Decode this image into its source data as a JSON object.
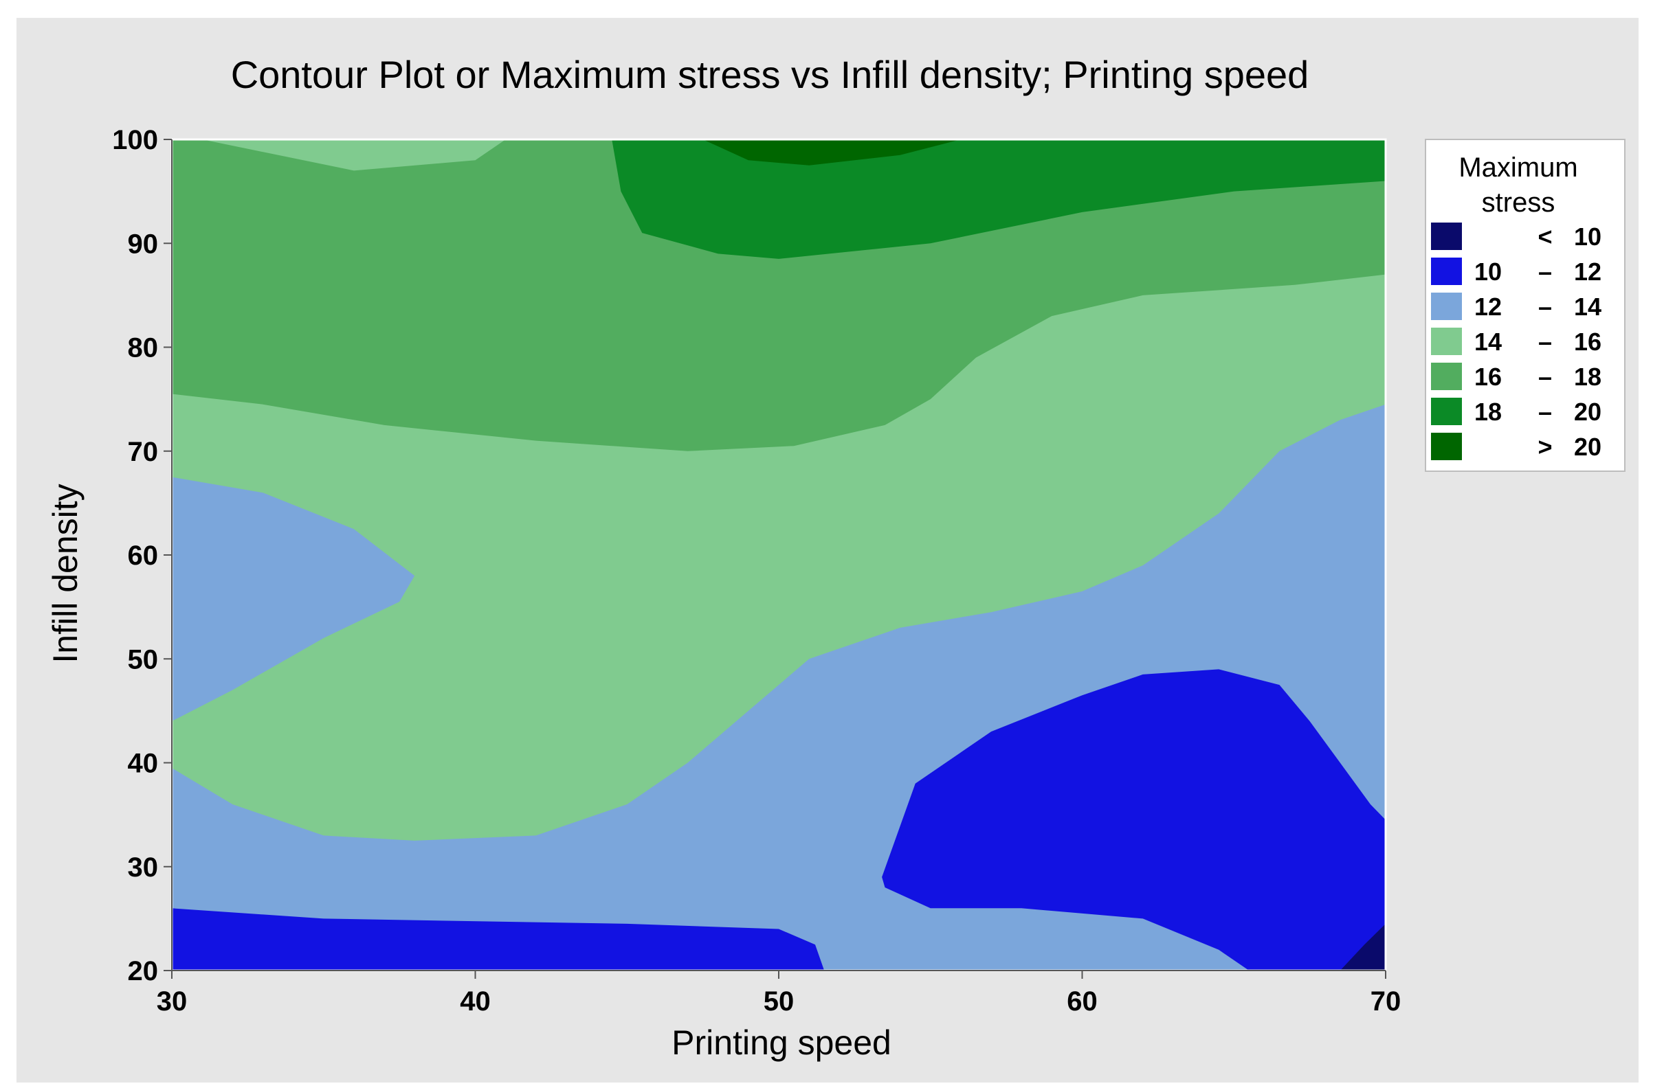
{
  "chart_data": {
    "type": "contour",
    "title": "Contour Plot or Maximum stress vs Infill density; Printing speed",
    "xlabel": "Printing speed",
    "ylabel": "Infill density",
    "xlim": [
      30,
      70
    ],
    "ylim": [
      20,
      100
    ],
    "xticks": [
      "30",
      "40",
      "50",
      "60",
      "70"
    ],
    "yticks": [
      "20",
      "30",
      "40",
      "50",
      "60",
      "70",
      "80",
      "90",
      "100"
    ],
    "legend": {
      "title_line1": "Maximum",
      "title_line2": "stress",
      "placement": "right",
      "entries": [
        {
          "low": "",
          "sep": "<",
          "high": "10",
          "color": "#0a0a6b"
        },
        {
          "low": "10",
          "sep": "–",
          "high": "12",
          "color": "#1212e2"
        },
        {
          "low": "12",
          "sep": "–",
          "high": "14",
          "color": "#7ba6db"
        },
        {
          "low": "14",
          "sep": "–",
          "high": "16",
          "color": "#80cb8f"
        },
        {
          "low": "16",
          "sep": "–",
          "high": "18",
          "color": "#52ad5f"
        },
        {
          "low": "18",
          "sep": "–",
          "high": "20",
          "color": "#0b8a26"
        },
        {
          "low": "",
          "sep": ">",
          "high": "20",
          "color": "#006600"
        }
      ]
    },
    "regions": [
      {
        "level": "12 – 14",
        "color": "#7ba6db",
        "points": [
          [
            30,
            20
          ],
          [
            70,
            20
          ],
          [
            70,
            100
          ],
          [
            30,
            100
          ]
        ]
      },
      {
        "level": "14 – 16",
        "color": "#80cb8f",
        "points": [
          [
            30,
            100
          ],
          [
            70,
            100
          ],
          [
            70,
            74.5
          ],
          [
            68.5,
            73
          ],
          [
            66.5,
            70
          ],
          [
            64.5,
            64
          ],
          [
            62,
            59
          ],
          [
            60,
            56.5
          ],
          [
            57,
            54.5
          ],
          [
            54,
            53
          ],
          [
            51,
            50
          ],
          [
            49,
            45
          ],
          [
            47,
            40
          ],
          [
            45,
            36
          ],
          [
            42,
            33
          ],
          [
            38,
            32.5
          ],
          [
            35,
            33
          ],
          [
            32,
            36
          ],
          [
            30,
            39.5
          ],
          [
            30,
            44
          ],
          [
            32,
            47
          ],
          [
            35,
            52
          ],
          [
            37.5,
            55.5
          ],
          [
            38,
            58
          ],
          [
            36,
            62.5
          ],
          [
            33,
            66
          ],
          [
            30,
            67.5
          ]
        ]
      },
      {
        "level": "16 – 18",
        "color": "#52ad5f",
        "points": [
          [
            30,
            100
          ],
          [
            70,
            100
          ],
          [
            70,
            87
          ],
          [
            67,
            86
          ],
          [
            62,
            85
          ],
          [
            59,
            83
          ],
          [
            56.5,
            79
          ],
          [
            55,
            75
          ],
          [
            53.5,
            72.5
          ],
          [
            50.5,
            70.5
          ],
          [
            47,
            70
          ],
          [
            42,
            71
          ],
          [
            37,
            72.5
          ],
          [
            33,
            74.5
          ],
          [
            30,
            75.5
          ]
        ]
      },
      {
        "level": "14 – 16",
        "color": "#80cb8f",
        "points": [
          [
            31,
            100
          ],
          [
            36,
            97
          ],
          [
            40,
            98
          ],
          [
            41,
            100
          ]
        ]
      },
      {
        "level": "18 – 20",
        "color": "#0b8a26",
        "points": [
          [
            44.5,
            100
          ],
          [
            44.8,
            95
          ],
          [
            45.5,
            91
          ],
          [
            48,
            89
          ],
          [
            50,
            88.5
          ],
          [
            55,
            90
          ],
          [
            60,
            93
          ],
          [
            65,
            95
          ],
          [
            70,
            96
          ],
          [
            70,
            100
          ]
        ]
      },
      {
        "level": "> 20",
        "color": "#006600",
        "points": [
          [
            47.5,
            100
          ],
          [
            49,
            98
          ],
          [
            51,
            97.5
          ],
          [
            54,
            98.5
          ],
          [
            56,
            100
          ]
        ]
      },
      {
        "level": "10 – 12",
        "color": "#1212e2",
        "points": [
          [
            30,
            20
          ],
          [
            51.5,
            20
          ],
          [
            51.2,
            22.5
          ],
          [
            50,
            24
          ],
          [
            45,
            24.5
          ],
          [
            35,
            25
          ],
          [
            30,
            26
          ]
        ]
      },
      {
        "level": "10 – 12",
        "color": "#1212e2",
        "points": [
          [
            53.4,
            29
          ],
          [
            54.5,
            38
          ],
          [
            57,
            43
          ],
          [
            60,
            46.5
          ],
          [
            62,
            48.5
          ],
          [
            64.5,
            49
          ],
          [
            66.5,
            47.5
          ],
          [
            67.5,
            44
          ],
          [
            68.5,
            40
          ],
          [
            69.5,
            36
          ],
          [
            70,
            34.5
          ],
          [
            70,
            20
          ],
          [
            65.5,
            20
          ],
          [
            64.5,
            22
          ],
          [
            62,
            25
          ],
          [
            58,
            26
          ],
          [
            55,
            26
          ],
          [
            53.5,
            28
          ]
        ]
      },
      {
        "level": "< 10",
        "color": "#0a0a6b",
        "points": [
          [
            68.5,
            20
          ],
          [
            69.3,
            22.5
          ],
          [
            70,
            24.5
          ],
          [
            70,
            20
          ]
        ]
      }
    ]
  }
}
